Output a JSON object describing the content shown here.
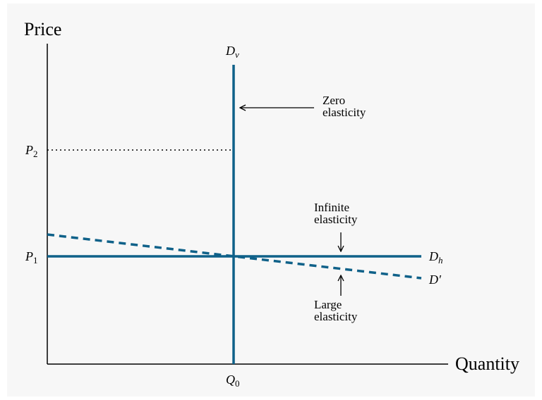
{
  "axes": {
    "y_label": "Price",
    "x_label": "Quantity"
  },
  "curves": [
    {
      "base": "D",
      "sub": "v"
    },
    {
      "base": "D",
      "sub": "h"
    },
    {
      "base": "D′"
    }
  ],
  "levels": [
    {
      "base": "P",
      "sub": "2"
    },
    {
      "base": "P",
      "sub": "1"
    },
    {
      "base": "Q",
      "sub": "0"
    }
  ],
  "annotations": [
    {
      "lines": [
        "Zero",
        "elasticity"
      ]
    },
    {
      "lines": [
        "Infinite",
        "elasticity"
      ]
    },
    {
      "lines": [
        "Large",
        "elasticity"
      ]
    }
  ]
}
